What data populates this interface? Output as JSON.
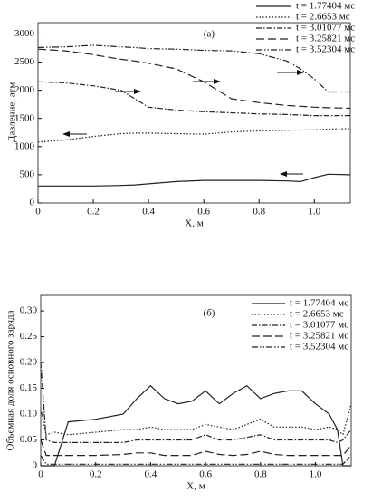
{
  "chart_data": [
    {
      "type": "line",
      "annotation": "(а)",
      "xlabel": "X, м",
      "ylabel": "Давление, атм",
      "x": [
        0,
        0.1,
        0.2,
        0.3,
        0.35,
        0.4,
        0.5,
        0.6,
        0.7,
        0.8,
        0.9,
        0.95,
        1.0,
        1.05,
        1.13
      ],
      "xlim": [
        0,
        1.13
      ],
      "ylim": [
        0,
        3200
      ],
      "xticks": [
        0,
        0.2,
        0.4,
        0.6,
        0.8,
        {
          "value": 1,
          "label": "1.0"
        }
      ],
      "yticks": [
        0,
        500,
        1000,
        1500,
        2000,
        2500,
        3000
      ],
      "series": [
        {
          "name": "t = 1.77404 мс",
          "color": "#222222",
          "dash": "solid",
          "values": [
            300,
            300,
            300,
            310,
            320,
            340,
            380,
            400,
            400,
            400,
            390,
            380,
            450,
            510,
            500
          ]
        },
        {
          "name": "t = 2.6653 мс",
          "color": "#222222",
          "dash": "dotted",
          "values": [
            1080,
            1120,
            1180,
            1230,
            1240,
            1240,
            1230,
            1220,
            1260,
            1280,
            1290,
            1295,
            1300,
            1310,
            1320
          ]
        },
        {
          "name": "t = 3.01077 мс",
          "color": "#222222",
          "dash": "dashdot",
          "values": [
            2150,
            2130,
            2080,
            2000,
            1850,
            1700,
            1650,
            1620,
            1600,
            1580,
            1570,
            1560,
            1550,
            1550,
            1550
          ]
        },
        {
          "name": "t = 3.25821 мс",
          "color": "#222222",
          "dash": "dashed",
          "values": [
            2730,
            2700,
            2630,
            2550,
            2520,
            2480,
            2380,
            2150,
            1850,
            1780,
            1730,
            1715,
            1700,
            1690,
            1680
          ]
        },
        {
          "name": "t = 3.52304 мс",
          "color": "#222222",
          "dash": "dashdotdot",
          "values": [
            2760,
            2770,
            2800,
            2770,
            2760,
            2740,
            2730,
            2710,
            2700,
            2650,
            2520,
            2380,
            2200,
            1970,
            1970
          ]
        }
      ]
    },
    {
      "type": "line",
      "annotation": "(б)",
      "xlabel": "X, м",
      "ylabel": "Объемная доля основного заряда",
      "x": [
        0,
        0.02,
        0.05,
        0.1,
        0.2,
        0.3,
        0.35,
        0.4,
        0.45,
        0.5,
        0.55,
        0.6,
        0.65,
        0.7,
        0.75,
        0.8,
        0.85,
        0.9,
        0.95,
        1.0,
        1.05,
        1.08,
        1.1,
        1.13
      ],
      "xlim": [
        0,
        1.13
      ],
      "ylim": [
        0,
        0.33
      ],
      "xticks": [
        0,
        0.2,
        0.4,
        0.6,
        0.8,
        {
          "value": 1,
          "label": "1.0"
        }
      ],
      "yticks": [
        0,
        0.05,
        {
          "value": 0.1,
          "label": "0.10"
        },
        0.15,
        {
          "value": 0.2,
          "label": "0.20"
        },
        0.25,
        {
          "value": 0.3,
          "label": "0.30"
        }
      ],
      "series": [
        {
          "name": "t = 1.77404 мс",
          "color": "#222222",
          "dash": "solid",
          "values": [
            0,
            0,
            0,
            0.085,
            0.09,
            0.1,
            0.13,
            0.155,
            0.13,
            0.12,
            0.125,
            0.145,
            0.12,
            0.14,
            0.155,
            0.13,
            0.14,
            0.145,
            0.145,
            0.12,
            0.1,
            0.07,
            0,
            0
          ]
        },
        {
          "name": "t = 2.6653 мс",
          "color": "#222222",
          "dash": "dotted",
          "values": [
            0.11,
            0.06,
            0.065,
            0.06,
            0.065,
            0.07,
            0.07,
            0.075,
            0.07,
            0.07,
            0.07,
            0.08,
            0.075,
            0.07,
            0.08,
            0.09,
            0.075,
            0.075,
            0.075,
            0.07,
            0.075,
            0.07,
            0.06,
            0.12
          ]
        },
        {
          "name": "t = 3.01077 мс",
          "color": "#222222",
          "dash": "dashdot",
          "values": [
            0.2,
            0.05,
            0.045,
            0.045,
            0.045,
            0.045,
            0.05,
            0.05,
            0.05,
            0.05,
            0.05,
            0.06,
            0.05,
            0.05,
            0.055,
            0.06,
            0.05,
            0.05,
            0.05,
            0.05,
            0.05,
            0.045,
            0.05,
            0.07
          ]
        },
        {
          "name": "t = 3.25821 мс",
          "color": "#222222",
          "dash": "dashed",
          "values": [
            0.05,
            0.02,
            0.02,
            0.02,
            0.02,
            0.022,
            0.025,
            0.025,
            0.02,
            0.02,
            0.02,
            0.028,
            0.022,
            0.02,
            0.022,
            0.028,
            0.022,
            0.02,
            0.02,
            0.02,
            0.02,
            0.02,
            0.02,
            0.04
          ]
        },
        {
          "name": "t = 3.52304 мс",
          "color": "#222222",
          "dash": "dashdotdot",
          "values": [
            0.02,
            0.003,
            0.003,
            0.003,
            0.003,
            0.003,
            0.003,
            0.003,
            0.003,
            0.003,
            0.003,
            0.003,
            0.003,
            0.003,
            0.003,
            0.003,
            0.003,
            0.003,
            0.003,
            0.003,
            0.003,
            0.003,
            0.003,
            0.02
          ]
        }
      ]
    }
  ]
}
